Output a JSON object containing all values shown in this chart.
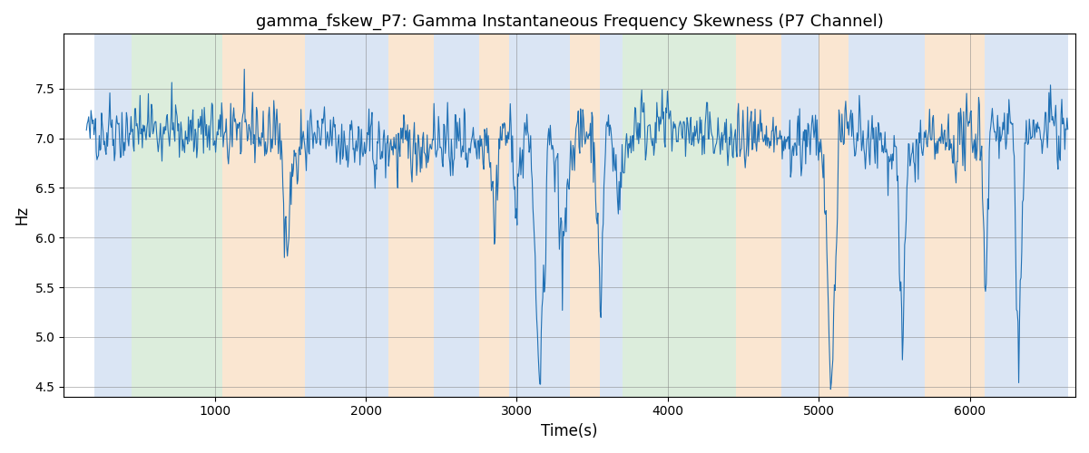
{
  "title": "gamma_fskew_P7: Gamma Instantaneous Frequency Skewness (P7 Channel)",
  "xlabel": "Time(s)",
  "ylabel": "Hz",
  "ylim": [
    4.4,
    8.05
  ],
  "xlim": [
    0,
    6700
  ],
  "line_color": "#2070b4",
  "line_width": 0.8,
  "background_bands": [
    {
      "xmin": 200,
      "xmax": 450,
      "color": "#aec6e8",
      "alpha": 0.45
    },
    {
      "xmin": 450,
      "xmax": 1050,
      "color": "#b2d8b2",
      "alpha": 0.45
    },
    {
      "xmin": 1050,
      "xmax": 1600,
      "color": "#f5c999",
      "alpha": 0.45
    },
    {
      "xmin": 1600,
      "xmax": 2150,
      "color": "#aec6e8",
      "alpha": 0.45
    },
    {
      "xmin": 2150,
      "xmax": 2450,
      "color": "#f5c999",
      "alpha": 0.45
    },
    {
      "xmin": 2450,
      "xmax": 2750,
      "color": "#aec6e8",
      "alpha": 0.45
    },
    {
      "xmin": 2750,
      "xmax": 2950,
      "color": "#f5c999",
      "alpha": 0.45
    },
    {
      "xmin": 2950,
      "xmax": 3350,
      "color": "#aec6e8",
      "alpha": 0.45
    },
    {
      "xmin": 3350,
      "xmax": 3550,
      "color": "#f5c999",
      "alpha": 0.45
    },
    {
      "xmin": 3550,
      "xmax": 3700,
      "color": "#aec6e8",
      "alpha": 0.45
    },
    {
      "xmin": 3700,
      "xmax": 3850,
      "color": "#b2d8b2",
      "alpha": 0.45
    },
    {
      "xmin": 3850,
      "xmax": 4450,
      "color": "#b2d8b2",
      "alpha": 0.45
    },
    {
      "xmin": 4450,
      "xmax": 4750,
      "color": "#f5c999",
      "alpha": 0.45
    },
    {
      "xmin": 4750,
      "xmax": 5000,
      "color": "#aec6e8",
      "alpha": 0.45
    },
    {
      "xmin": 5000,
      "xmax": 5200,
      "color": "#f5c999",
      "alpha": 0.45
    },
    {
      "xmin": 5200,
      "xmax": 5700,
      "color": "#aec6e8",
      "alpha": 0.45
    },
    {
      "xmin": 5700,
      "xmax": 6100,
      "color": "#f5c999",
      "alpha": 0.45
    },
    {
      "xmin": 6100,
      "xmax": 6650,
      "color": "#aec6e8",
      "alpha": 0.45
    }
  ],
  "seed": 42,
  "n_points": 1300,
  "t_start": 150,
  "t_end": 6650,
  "base_mean": 7.0,
  "noise_std": 0.18,
  "fluct_std": 0.12
}
